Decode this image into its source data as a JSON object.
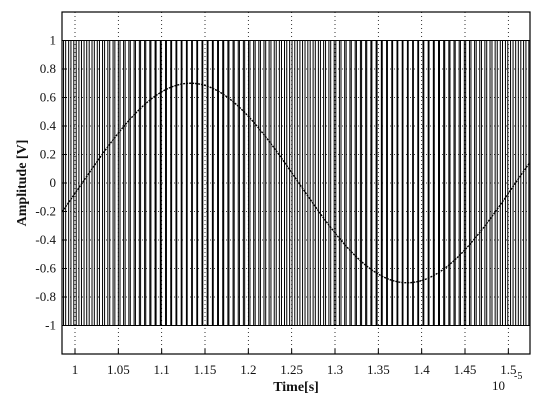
{
  "chart_data": {
    "type": "line",
    "title": "",
    "xlabel": "Time[s]",
    "ylabel": "Amplitude [V]",
    "x_exponent_label": "10",
    "x_exponent_power": "-5",
    "xlim": [
      0.985,
      1.525
    ],
    "ylim": [
      -1.2,
      1.2
    ],
    "grid": true,
    "legend": "none",
    "x_ticks": [
      "1",
      "1.05",
      "1.1",
      "1.15",
      "1.2",
      "1.25",
      "1.3",
      "1.35",
      "1.4",
      "1.45",
      "1.5"
    ],
    "y_ticks": [
      "1",
      "0.8",
      "0.6",
      "0.4",
      "0.2",
      "0",
      "-0.2",
      "-0.4",
      "-0.6",
      "-0.8",
      "-1"
    ],
    "series": [
      {
        "style": "sine",
        "amplitude": 0.7,
        "peak_x": 1.1333,
        "period": 0.5,
        "x_start": 0.985,
        "x_end": 1.525
      },
      {
        "style": "pwm-square",
        "levels": [
          -1,
          1
        ],
        "carrier_period": 0.006,
        "modulation_amplitude": 0.7,
        "modulation_peak_x": 1.1333,
        "modulation_period": 0.5
      }
    ]
  }
}
